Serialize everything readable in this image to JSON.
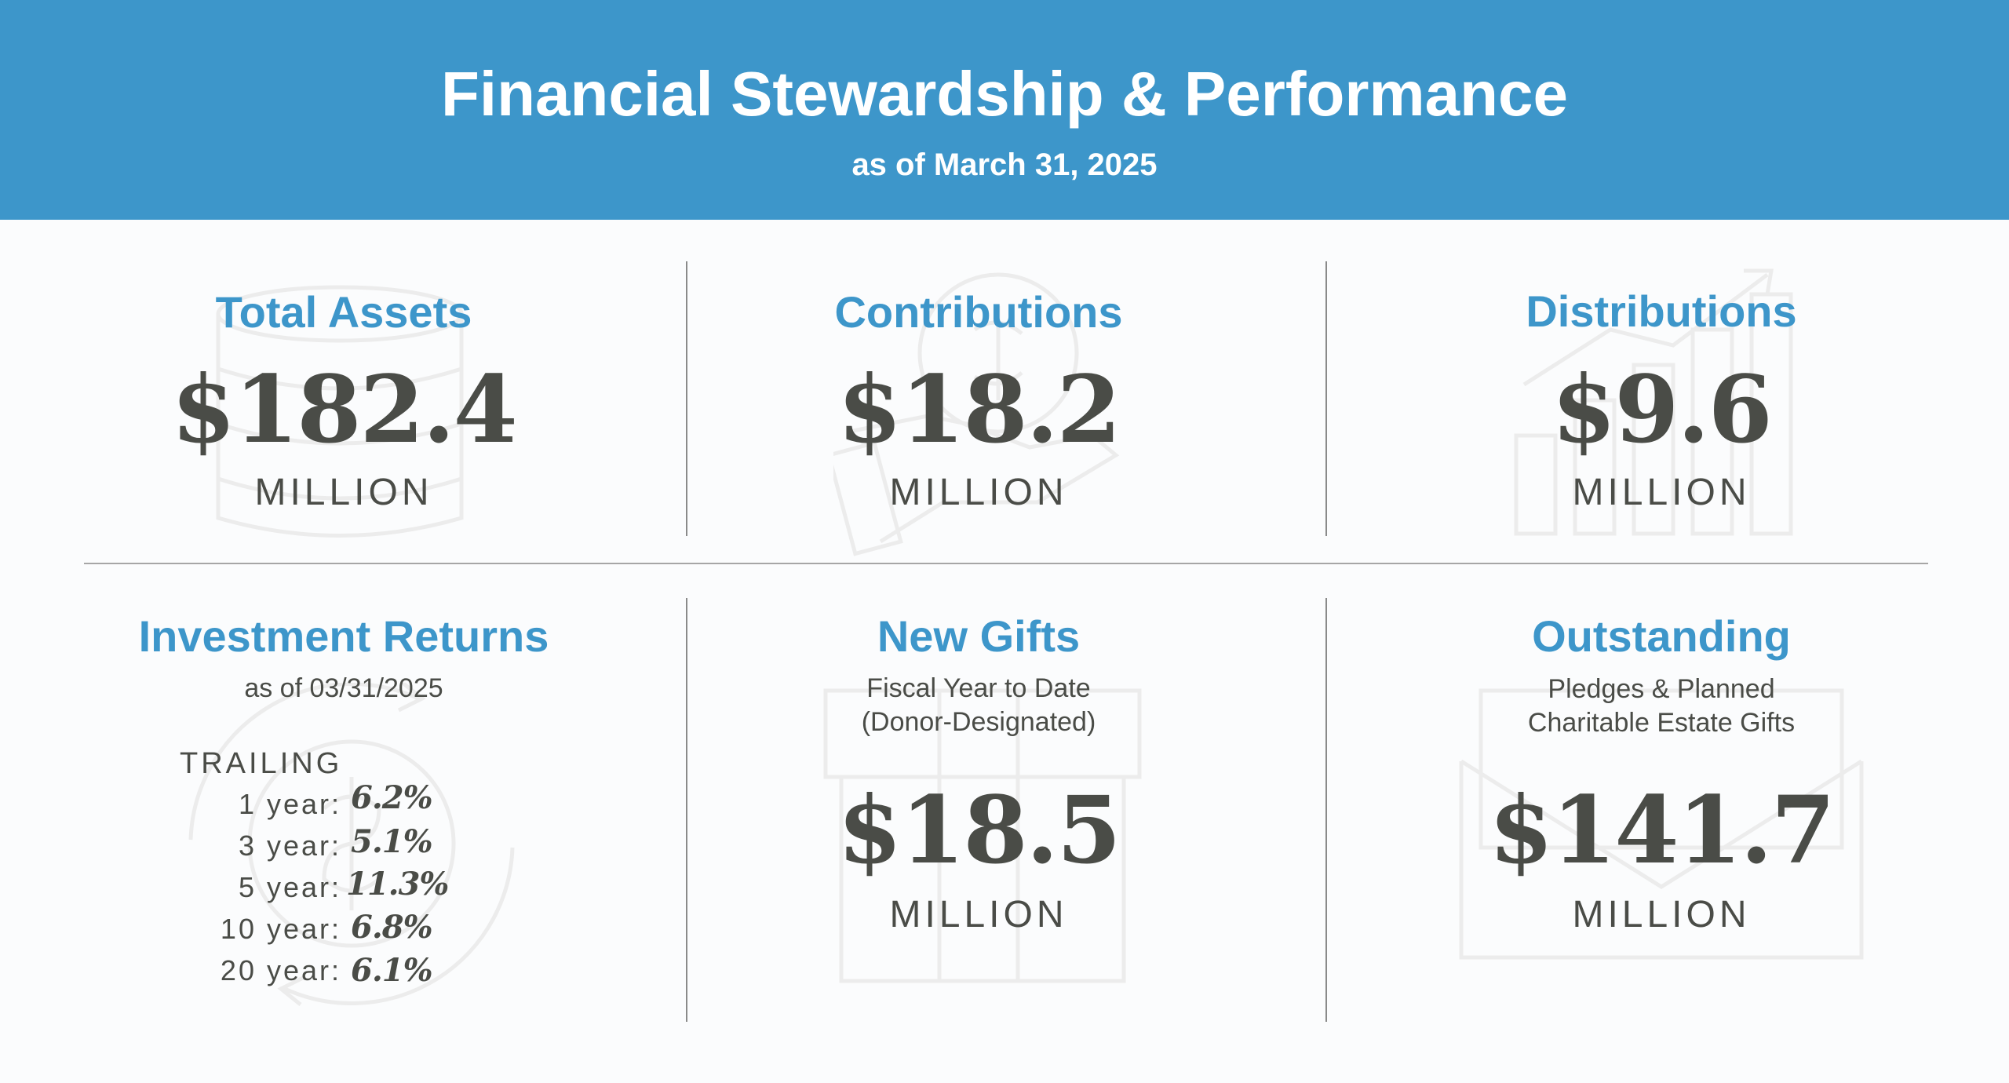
{
  "header": {
    "title": "Financial Stewardship & Performance",
    "subtitle": "as of March 31, 2025"
  },
  "colors": {
    "header_bg": "#3d96ca",
    "accent": "#3d96ca",
    "text_dark": "#4a4c47",
    "background": "#fbfcfd"
  },
  "metrics": {
    "total_assets": {
      "title": "Total Assets",
      "amount": "$182.4",
      "unit": "MILLION",
      "icon": "coin-stack-icon"
    },
    "contributions": {
      "title": "Contributions",
      "amount": "$18.2",
      "unit": "MILLION",
      "icon": "hand-giving-icon"
    },
    "distributions": {
      "title": "Distributions",
      "amount": "$9.6",
      "unit": "MILLION",
      "icon": "bar-growth-icon"
    },
    "investment_returns": {
      "title": "Investment Returns",
      "note": "as of 03/31/2025",
      "trailing_label": "TRAILING",
      "icon": "dollar-cycle-icon",
      "rows": [
        {
          "label": "1 year:",
          "value": "6.2%"
        },
        {
          "label": "3 year:",
          "value": "5.1%"
        },
        {
          "label": "5 year:",
          "value": "11.3%"
        },
        {
          "label": "10 year:",
          "value": "6.8%"
        },
        {
          "label": "20 year:",
          "value": "6.1%"
        }
      ]
    },
    "new_gifts": {
      "title": "New Gifts",
      "note_line1": "Fiscal Year to Date",
      "note_line2": "(Donor-Designated)",
      "amount": "$18.5",
      "unit": "MILLION",
      "icon": "gift-box-icon"
    },
    "outstanding": {
      "title": "Outstanding",
      "note_line1": "Pledges & Planned",
      "note_line2": "Charitable Estate Gifts",
      "amount": "$141.7",
      "unit": "MILLION",
      "icon": "envelope-icon"
    }
  }
}
